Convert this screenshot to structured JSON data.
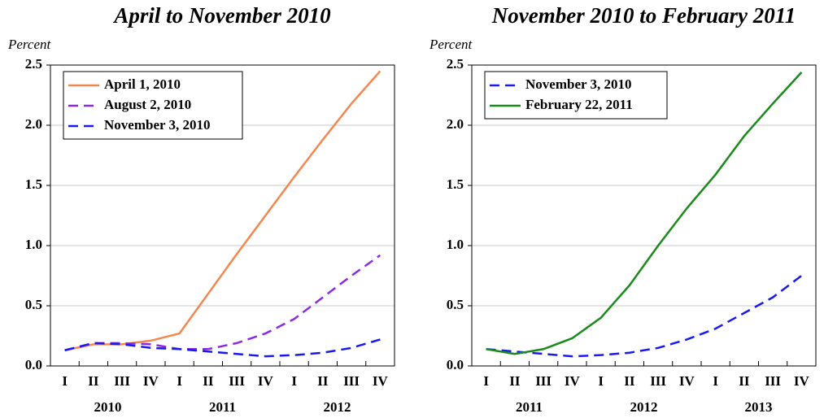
{
  "chart_data": [
    {
      "type": "line",
      "title": "April to November 2010",
      "ylabel": "Percent",
      "categories": [
        "I",
        "II",
        "III",
        "IV",
        "I",
        "II",
        "III",
        "IV",
        "I",
        "II",
        "III",
        "IV"
      ],
      "years": [
        "2010",
        "2011",
        "2012"
      ],
      "ylim": [
        0,
        2.5
      ],
      "yticks": [
        {
          "value": 0,
          "label": "0.0"
        },
        0.5,
        {
          "value": 1,
          "label": "1.0"
        },
        1.5,
        {
          "value": 2,
          "label": "2.0"
        },
        2.5
      ],
      "grid": true,
      "legend": "top-left",
      "series": [
        {
          "name": "April 1, 2010",
          "color": "#f4874f",
          "dash": false,
          "values": [
            0.13,
            0.18,
            0.18,
            0.21,
            0.27,
            0.6,
            0.93,
            1.25,
            1.57,
            1.88,
            2.18,
            2.45
          ]
        },
        {
          "name": "August 2, 2010",
          "color": "#8a2be2",
          "dash": true,
          "values": [
            0.13,
            0.19,
            0.19,
            0.18,
            0.14,
            0.14,
            0.19,
            0.27,
            0.39,
            0.57,
            0.75,
            0.92
          ]
        },
        {
          "name": "November 3, 2010",
          "color": "#1a1aee",
          "dash": true,
          "values": [
            0.13,
            0.19,
            0.18,
            0.15,
            0.14,
            0.12,
            0.1,
            0.08,
            0.09,
            0.11,
            0.15,
            0.22
          ]
        }
      ]
    },
    {
      "type": "line",
      "title": "November 2010 to February 2011",
      "ylabel": "Percent",
      "categories": [
        "I",
        "II",
        "III",
        "IV",
        "I",
        "II",
        "III",
        "IV",
        "I",
        "II",
        "III",
        "IV"
      ],
      "years": [
        "2011",
        "2012",
        "2013"
      ],
      "ylim": [
        0,
        2.5
      ],
      "yticks": [
        {
          "value": 0,
          "label": "0.0"
        },
        0.5,
        {
          "value": 1,
          "label": "1.0"
        },
        1.5,
        {
          "value": 2,
          "label": "2.0"
        },
        2.5
      ],
      "grid": true,
      "legend": "top-left",
      "series": [
        {
          "name": "November 3, 2010",
          "color": "#1a1aee",
          "dash": true,
          "values": [
            0.14,
            0.12,
            0.1,
            0.08,
            0.09,
            0.11,
            0.15,
            0.22,
            0.31,
            0.44,
            0.57,
            0.75
          ]
        },
        {
          "name": "February 22, 2011",
          "color": "#1a8a1a",
          "dash": false,
          "values": [
            0.14,
            0.1,
            0.14,
            0.23,
            0.4,
            0.67,
            1.0,
            1.31,
            1.59,
            1.91,
            2.18,
            2.44
          ]
        }
      ]
    }
  ]
}
